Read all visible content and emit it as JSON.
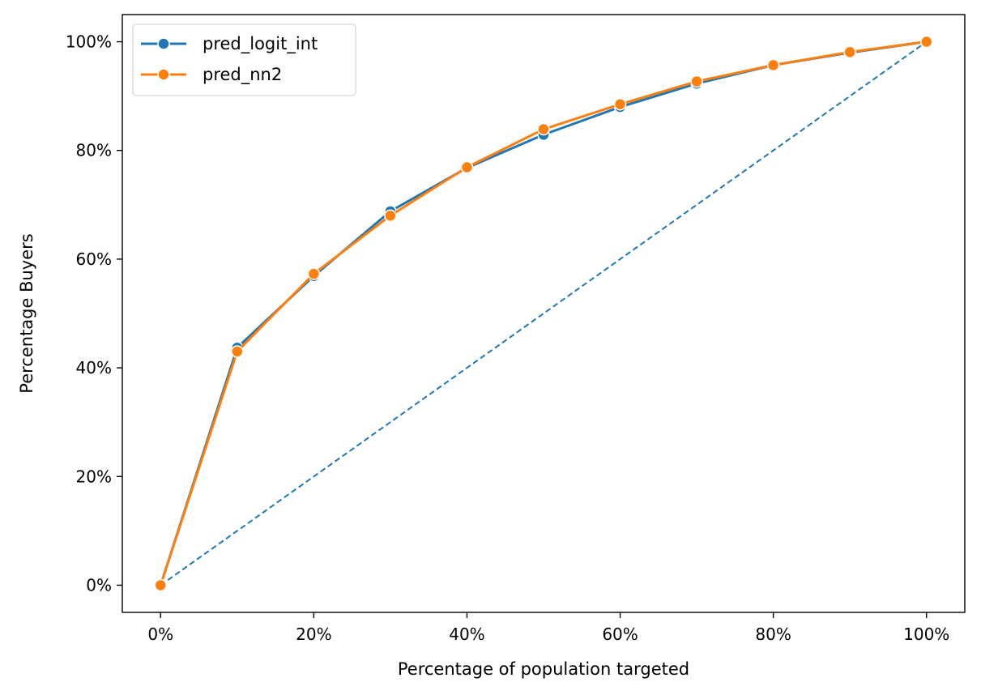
{
  "chart_data": {
    "type": "line",
    "x": [
      0,
      10,
      20,
      30,
      40,
      50,
      60,
      70,
      80,
      90,
      100
    ],
    "series": [
      {
        "name": "pred_logit_int",
        "color": "#1f77b4",
        "values": [
          0,
          43.7,
          56.9,
          68.8,
          76.8,
          82.9,
          88.0,
          92.3,
          95.7,
          98.0,
          100
        ]
      },
      {
        "name": "pred_nn2",
        "color": "#ff7f0e",
        "values": [
          0,
          43.0,
          57.3,
          68.0,
          76.9,
          83.9,
          88.5,
          92.7,
          95.7,
          98.1,
          100
        ]
      }
    ],
    "baseline": {
      "x": [
        0,
        100
      ],
      "y": [
        0,
        100
      ],
      "color": "#1f77b4",
      "style": "dashed"
    },
    "xlabel": "Percentage of population targeted",
    "ylabel": "Percentage Buyers",
    "xticks": [
      0,
      20,
      40,
      60,
      80,
      100
    ],
    "xtick_labels": [
      "0%",
      "20%",
      "40%",
      "60%",
      "80%",
      "100%"
    ],
    "yticks": [
      0,
      20,
      40,
      60,
      80,
      100
    ],
    "ytick_labels": [
      "0%",
      "20%",
      "40%",
      "60%",
      "80%",
      "100%"
    ],
    "xlim": [
      -5,
      105
    ],
    "ylim": [
      -5,
      105
    ],
    "grid": false,
    "legend": "top-left"
  }
}
